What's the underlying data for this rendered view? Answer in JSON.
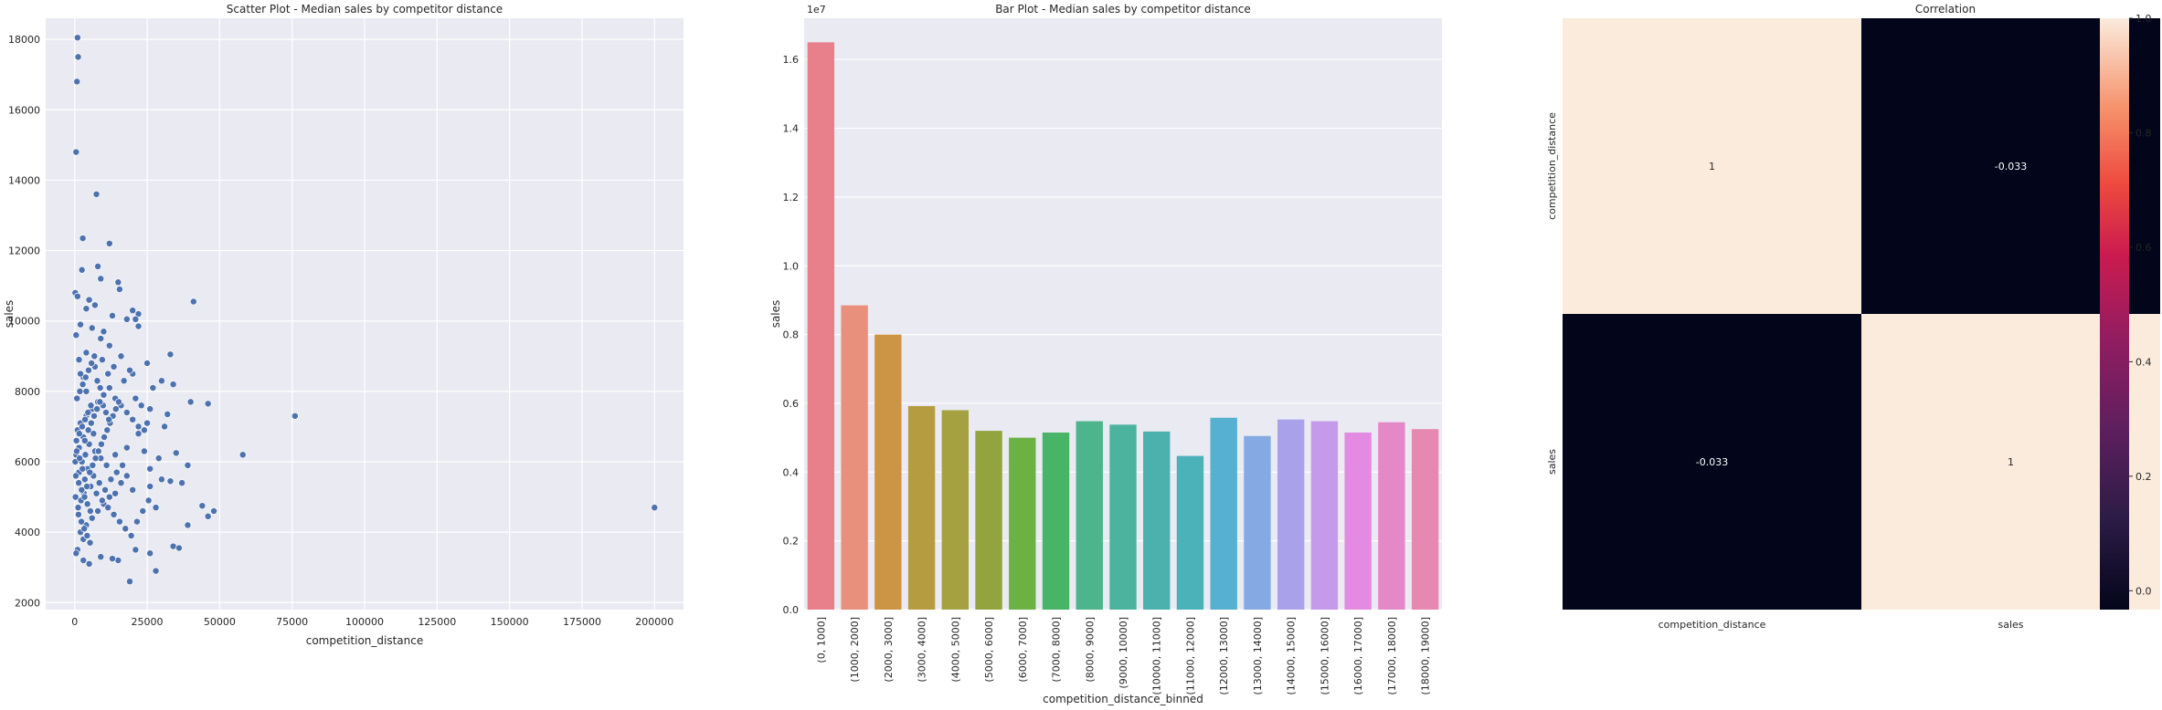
{
  "chart_data": [
    {
      "type": "scatter",
      "title": "Scatter Plot - Median sales by competitor distance",
      "xlabel": "competition_distance",
      "ylabel": "sales",
      "xlim": [
        -10000,
        210000
      ],
      "ylim": [
        1800,
        18600
      ],
      "xticks": [
        "0",
        "25000",
        "50000",
        "75000",
        "100000",
        "125000",
        "150000",
        "175000",
        "200000"
      ],
      "yticks": [
        "2000",
        "4000",
        "6000",
        "8000",
        "10000",
        "12000",
        "14000",
        "16000",
        "18000"
      ],
      "color": "#4c72b0",
      "grid": true,
      "points": [
        [
          1000,
          18050
        ],
        [
          1200,
          17500
        ],
        [
          800,
          16800
        ],
        [
          500,
          14800
        ],
        [
          7500,
          13600
        ],
        [
          2800,
          12350
        ],
        [
          12000,
          12200
        ],
        [
          8000,
          11550
        ],
        [
          2500,
          11450
        ],
        [
          15000,
          11100
        ],
        [
          15500,
          10900
        ],
        [
          200,
          10800
        ],
        [
          9000,
          11200
        ],
        [
          1000,
          10700
        ],
        [
          5000,
          10600
        ],
        [
          7000,
          10450
        ],
        [
          13000,
          10150
        ],
        [
          4000,
          10350
        ],
        [
          20000,
          10300
        ],
        [
          22000,
          10200
        ],
        [
          41000,
          10550
        ],
        [
          18000,
          10050
        ],
        [
          21000,
          10050
        ],
        [
          6000,
          9800
        ],
        [
          10000,
          9700
        ],
        [
          22000,
          9850
        ],
        [
          2000,
          9900
        ],
        [
          500,
          9600
        ],
        [
          33000,
          9050
        ],
        [
          25000,
          8800
        ],
        [
          9000,
          9500
        ],
        [
          12000,
          9300
        ],
        [
          16000,
          9000
        ],
        [
          20000,
          8500
        ],
        [
          27000,
          8100
        ],
        [
          30000,
          8300
        ],
        [
          34000,
          8200
        ],
        [
          4000,
          9100
        ],
        [
          7000,
          8700
        ],
        [
          3000,
          8400
        ],
        [
          1500,
          8900
        ],
        [
          40000,
          7700
        ],
        [
          46000,
          7650
        ],
        [
          26000,
          7500
        ],
        [
          32000,
          7350
        ],
        [
          31000,
          7000
        ],
        [
          22000,
          6800
        ],
        [
          18000,
          6400
        ],
        [
          14000,
          6200
        ],
        [
          24000,
          6300
        ],
        [
          29000,
          6100
        ],
        [
          35000,
          6250
        ],
        [
          39000,
          5900
        ],
        [
          26000,
          5800
        ],
        [
          30000,
          5500
        ],
        [
          33000,
          5450
        ],
        [
          37000,
          5400
        ],
        [
          26000,
          5300
        ],
        [
          20000,
          5200
        ],
        [
          28000,
          4700
        ],
        [
          44000,
          4750
        ],
        [
          48000,
          4600
        ],
        [
          46000,
          4450
        ],
        [
          39000,
          4200
        ],
        [
          34000,
          3600
        ],
        [
          36000,
          3550
        ],
        [
          26000,
          3400
        ],
        [
          28000,
          2900
        ],
        [
          21000,
          3500
        ],
        [
          19000,
          2600
        ],
        [
          15000,
          3200
        ],
        [
          13000,
          3250
        ],
        [
          9000,
          3300
        ],
        [
          5000,
          3100
        ],
        [
          3000,
          3200
        ],
        [
          1000,
          3500
        ],
        [
          500,
          3400
        ],
        [
          3000,
          3800
        ],
        [
          2000,
          4000
        ],
        [
          4000,
          4200
        ],
        [
          6000,
          4400
        ],
        [
          8000,
          4600
        ],
        [
          10000,
          4800
        ],
        [
          12000,
          5000
        ],
        [
          14000,
          5100
        ],
        [
          16000,
          5400
        ],
        [
          18000,
          5600
        ],
        [
          11000,
          5900
        ],
        [
          9000,
          6100
        ],
        [
          7000,
          6300
        ],
        [
          5000,
          6500
        ],
        [
          3000,
          6700
        ],
        [
          1000,
          6900
        ],
        [
          2000,
          7100
        ],
        [
          4000,
          7300
        ],
        [
          6000,
          7500
        ],
        [
          8000,
          7700
        ],
        [
          10000,
          7900
        ],
        [
          12000,
          8100
        ],
        [
          14000,
          7800
        ],
        [
          16000,
          7600
        ],
        [
          18000,
          7400
        ],
        [
          20000,
          7200
        ],
        [
          22000,
          7000
        ],
        [
          24000,
          6900
        ],
        [
          6500,
          6800
        ],
        [
          3500,
          6600
        ],
        [
          1500,
          6400
        ],
        [
          500,
          6200
        ],
        [
          2500,
          6000
        ],
        [
          4500,
          5800
        ],
        [
          6500,
          5600
        ],
        [
          8500,
          5400
        ],
        [
          10500,
          5200
        ],
        [
          12500,
          5500
        ],
        [
          14500,
          5700
        ],
        [
          16500,
          5900
        ],
        [
          1500,
          5700
        ],
        [
          3500,
          5500
        ],
        [
          5500,
          5300
        ],
        [
          7500,
          5100
        ],
        [
          9500,
          4900
        ],
        [
          11500,
          4700
        ],
        [
          13500,
          4500
        ],
        [
          15500,
          4300
        ],
        [
          17500,
          4100
        ],
        [
          19500,
          3900
        ],
        [
          21500,
          4300
        ],
        [
          23500,
          4600
        ],
        [
          25500,
          4900
        ],
        [
          1200,
          4700
        ],
        [
          2200,
          4900
        ],
        [
          3200,
          5100
        ],
        [
          4200,
          5300
        ],
        [
          5200,
          5700
        ],
        [
          6200,
          5900
        ],
        [
          7200,
          6100
        ],
        [
          8200,
          6300
        ],
        [
          9200,
          6500
        ],
        [
          10200,
          6700
        ],
        [
          11200,
          6900
        ],
        [
          12200,
          7100
        ],
        [
          13200,
          7300
        ],
        [
          14200,
          7500
        ],
        [
          15200,
          7700
        ],
        [
          800,
          7800
        ],
        [
          1800,
          8000
        ],
        [
          2800,
          8200
        ],
        [
          3800,
          8400
        ],
        [
          4800,
          8600
        ],
        [
          5800,
          8800
        ],
        [
          6800,
          9000
        ],
        [
          7800,
          8300
        ],
        [
          8800,
          8100
        ],
        [
          9800,
          7600
        ],
        [
          10800,
          7400
        ],
        [
          11800,
          7200
        ],
        [
          600,
          6600
        ],
        [
          1600,
          6800
        ],
        [
          2600,
          7000
        ],
        [
          3600,
          7200
        ],
        [
          4600,
          7400
        ],
        [
          5600,
          7600
        ],
        [
          400,
          5600
        ],
        [
          1400,
          5400
        ],
        [
          2400,
          5200
        ],
        [
          3400,
          5000
        ],
        [
          4400,
          4800
        ],
        [
          5400,
          4600
        ],
        [
          300,
          5000
        ],
        [
          1300,
          4500
        ],
        [
          2300,
          4300
        ],
        [
          3300,
          4100
        ],
        [
          4300,
          3900
        ],
        [
          5300,
          3700
        ],
        [
          200,
          6000
        ],
        [
          700,
          6300
        ],
        [
          1700,
          6100
        ],
        [
          2700,
          5800
        ],
        [
          3700,
          6200
        ],
        [
          4700,
          6900
        ],
        [
          5700,
          7100
        ],
        [
          6700,
          7300
        ],
        [
          7700,
          7500
        ],
        [
          8700,
          7700
        ],
        [
          17000,
          8300
        ],
        [
          19000,
          8600
        ],
        [
          21000,
          7800
        ],
        [
          23000,
          7600
        ],
        [
          25000,
          7100
        ],
        [
          13500,
          8700
        ],
        [
          11500,
          8500
        ],
        [
          9500,
          8900
        ],
        [
          4000,
          8000
        ],
        [
          2000,
          8500
        ],
        [
          76000,
          7300
        ],
        [
          58000,
          6200
        ],
        [
          200000,
          4700
        ]
      ]
    },
    {
      "type": "bar",
      "title": "Bar Plot - Median sales by competitor distance",
      "xlabel": "competition_distance_binned",
      "ylabel": "sales",
      "scale_label": "1e7",
      "ylim": [
        0,
        1.72
      ],
      "yticks": [
        "0.0",
        "0.2",
        "0.4",
        "0.6",
        "0.8",
        "1.0",
        "1.2",
        "1.4",
        "1.6"
      ],
      "grid": true,
      "categories": [
        "(0, 1000]",
        "(1000, 2000]",
        "(2000, 3000]",
        "(3000, 4000]",
        "(4000, 5000]",
        "(5000, 6000]",
        "(6000, 7000]",
        "(7000, 8000]",
        "(8000, 9000]",
        "(9000, 10000]",
        "(10000, 11000]",
        "(11000, 12000]",
        "(12000, 13000]",
        "(13000, 14000]",
        "(14000, 15000]",
        "(15000, 16000]",
        "(16000, 17000]",
        "(17000, 18000]",
        "(18000, 19000]"
      ],
      "values": [
        1.65,
        0.885,
        0.8,
        0.592,
        0.58,
        0.52,
        0.5,
        0.515,
        0.548,
        0.538,
        0.518,
        0.447,
        0.558,
        0.505,
        0.553,
        0.548,
        0.515,
        0.545,
        0.525
      ],
      "colors": [
        "#e8808c",
        "#e8907c",
        "#cc9445",
        "#b69c40",
        "#a5a040",
        "#93a43e",
        "#6bb144",
        "#48b467",
        "#4cb58c",
        "#4cb39f",
        "#4cb0ac",
        "#4cb2ba",
        "#55b1cf",
        "#84a9e3",
        "#aaa1eb",
        "#c59aea",
        "#e38ae3",
        "#e588c8",
        "#e788b2"
      ]
    },
    {
      "type": "heatmap",
      "title": "Correlation",
      "row_labels": [
        "competition_distance",
        "sales"
      ],
      "col_labels": [
        "competition_distance",
        "sales"
      ],
      "values": [
        [
          "1",
          "-0.033"
        ],
        [
          "-0.033",
          "1"
        ]
      ],
      "cell_colors": [
        [
          "#faebdd",
          "#03051a"
        ],
        [
          "#03051a",
          "#faebdd"
        ]
      ],
      "colorbar_ticks": [
        "0.0",
        "0.2",
        "0.4",
        "0.6",
        "0.8",
        "1.0"
      ],
      "colorbar_range": [
        -0.033,
        1.0
      ]
    }
  ]
}
